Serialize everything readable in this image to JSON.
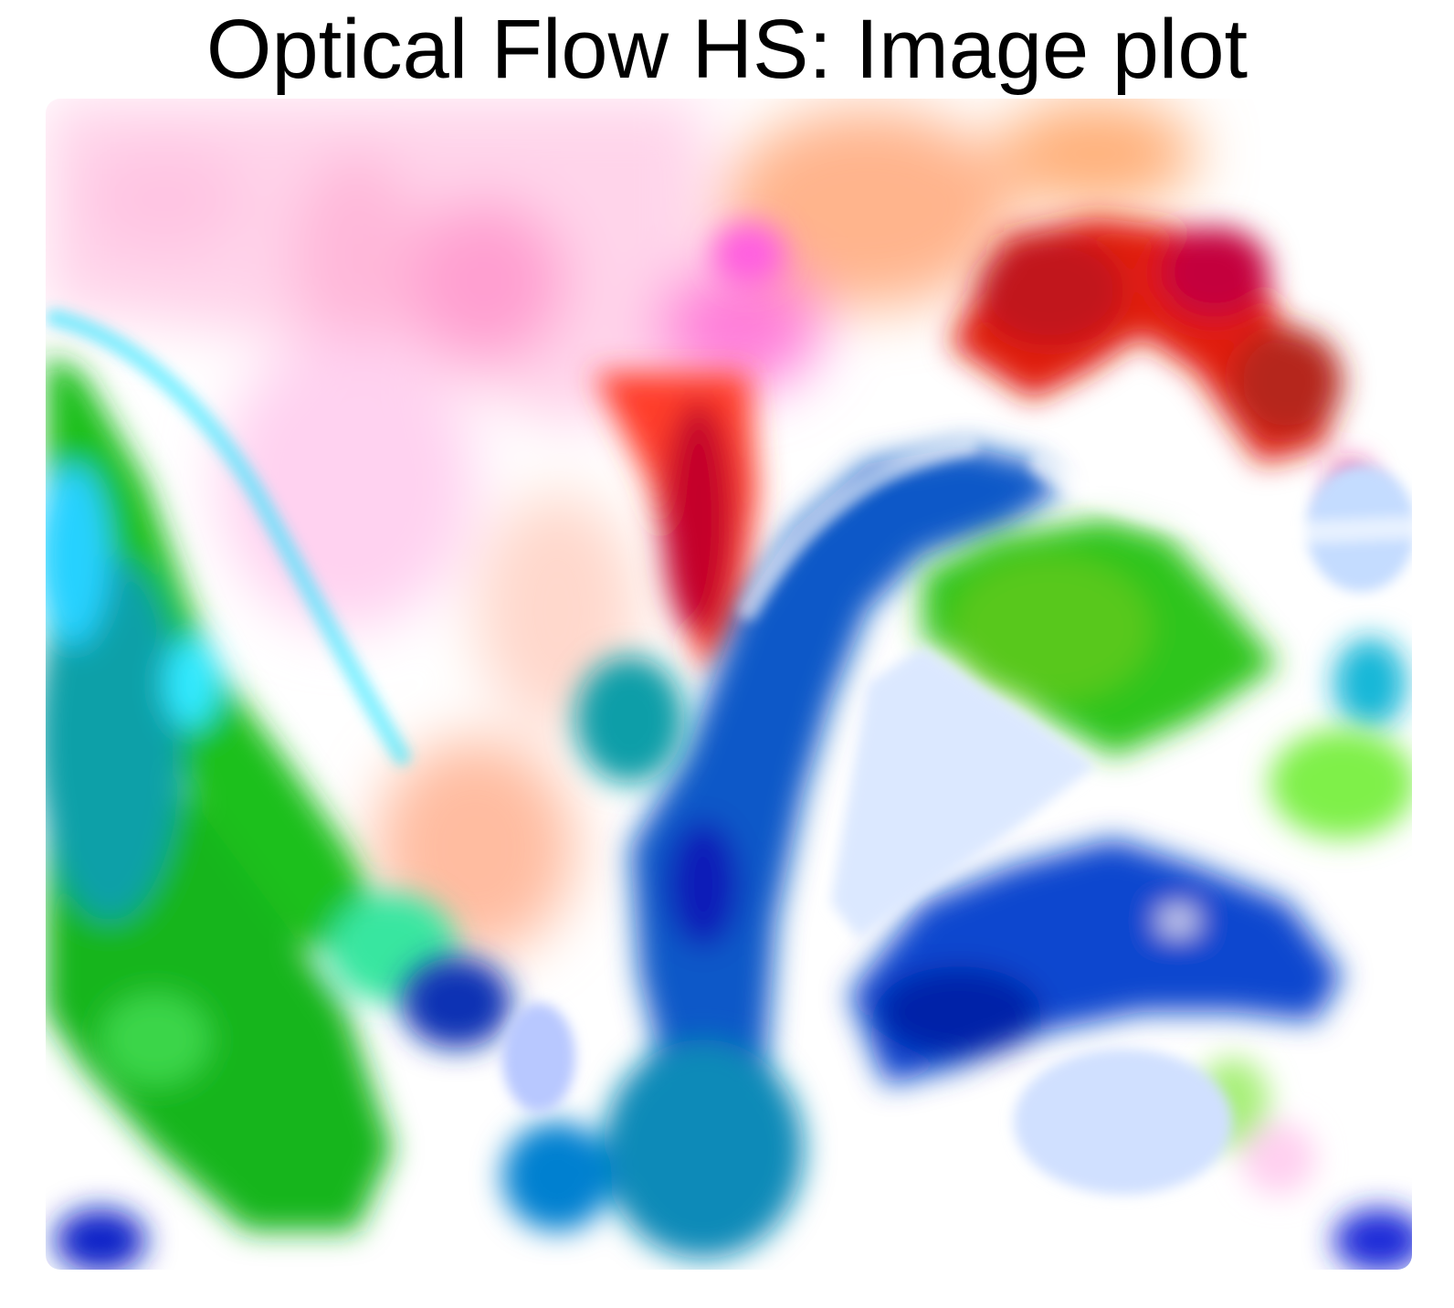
{
  "figure": {
    "title": "Optical Flow HS: Image plot",
    "colors": {
      "red": "#e0180e",
      "dark_red": "#b8002a",
      "pink": "#ff9fd6",
      "green": "#18bf1a",
      "lime": "#58cf1a",
      "cyan": "#1fe6f0",
      "teal": "#0a9ea8",
      "blue": "#0b4fd2",
      "dark_blue": "#0624a8",
      "white": "#ffffff"
    }
  }
}
